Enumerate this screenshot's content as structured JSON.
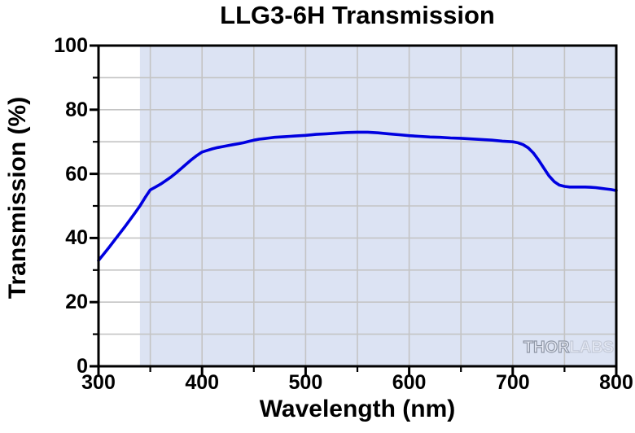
{
  "watermark": {
    "thor": "THOR",
    "labs": "LABS"
  },
  "colors": {
    "background": "#ffffff",
    "frame": "#000000",
    "gridline": "#c4c4c4",
    "shaded_region": "#dce3f3",
    "curve": "#0000e0",
    "text": "#000000",
    "watermark_thor_outline": "#8f97a6",
    "watermark_labs_outline": "#c4cad8"
  },
  "chart_data": {
    "type": "line",
    "title": "LLG3-6H Transmission",
    "xlabel": "Wavelength (nm)",
    "ylabel": "Transmission (%)",
    "xlim": [
      300,
      800
    ],
    "ylim": [
      0,
      100
    ],
    "x_major_ticks": [
      300,
      400,
      500,
      600,
      700,
      800
    ],
    "x_minor_ticks": [
      350,
      450,
      550,
      650,
      750
    ],
    "y_major_ticks": [
      0,
      20,
      40,
      60,
      80,
      100
    ],
    "y_minor_ticks": [
      10,
      30,
      50,
      70,
      90
    ],
    "x_gridlines": [
      350,
      400,
      450,
      500,
      550,
      600,
      650,
      700,
      750
    ],
    "y_gridlines": [
      10,
      20,
      30,
      40,
      50,
      60,
      70,
      80,
      90
    ],
    "grid": true,
    "legend": "none",
    "shaded_region": {
      "x_start": 340,
      "x_end": 800
    },
    "series": [
      {
        "name": "LLG3-6H",
        "points": [
          [
            300,
            33.0
          ],
          [
            305,
            35.0
          ],
          [
            310,
            37.0
          ],
          [
            315,
            39.1
          ],
          [
            320,
            41.2
          ],
          [
            325,
            43.3
          ],
          [
            330,
            45.5
          ],
          [
            335,
            47.7
          ],
          [
            340,
            50.0
          ],
          [
            345,
            52.6
          ],
          [
            350,
            55.0
          ],
          [
            355,
            55.9
          ],
          [
            360,
            56.8
          ],
          [
            365,
            57.9
          ],
          [
            370,
            59.0
          ],
          [
            375,
            60.3
          ],
          [
            380,
            61.7
          ],
          [
            385,
            63.1
          ],
          [
            390,
            64.5
          ],
          [
            395,
            65.7
          ],
          [
            400,
            66.8
          ],
          [
            405,
            67.3
          ],
          [
            410,
            67.8
          ],
          [
            415,
            68.2
          ],
          [
            420,
            68.5
          ],
          [
            425,
            68.8
          ],
          [
            430,
            69.1
          ],
          [
            435,
            69.4
          ],
          [
            440,
            69.7
          ],
          [
            445,
            70.1
          ],
          [
            450,
            70.5
          ],
          [
            455,
            70.8
          ],
          [
            460,
            71.0
          ],
          [
            465,
            71.2
          ],
          [
            470,
            71.4
          ],
          [
            475,
            71.5
          ],
          [
            480,
            71.6
          ],
          [
            485,
            71.7
          ],
          [
            490,
            71.8
          ],
          [
            495,
            71.9
          ],
          [
            500,
            72.0
          ],
          [
            510,
            72.3
          ],
          [
            520,
            72.5
          ],
          [
            530,
            72.7
          ],
          [
            540,
            72.9
          ],
          [
            550,
            73.0
          ],
          [
            560,
            73.0
          ],
          [
            570,
            72.8
          ],
          [
            580,
            72.5
          ],
          [
            590,
            72.2
          ],
          [
            600,
            71.9
          ],
          [
            610,
            71.7
          ],
          [
            620,
            71.5
          ],
          [
            630,
            71.4
          ],
          [
            640,
            71.2
          ],
          [
            650,
            71.1
          ],
          [
            660,
            70.9
          ],
          [
            670,
            70.7
          ],
          [
            680,
            70.5
          ],
          [
            690,
            70.2
          ],
          [
            700,
            70.0
          ],
          [
            705,
            69.7
          ],
          [
            710,
            69.1
          ],
          [
            715,
            68.1
          ],
          [
            720,
            66.5
          ],
          [
            725,
            64.3
          ],
          [
            730,
            61.8
          ],
          [
            735,
            59.4
          ],
          [
            740,
            57.6
          ],
          [
            745,
            56.5
          ],
          [
            750,
            56.1
          ],
          [
            755,
            55.9
          ],
          [
            760,
            55.9
          ],
          [
            765,
            55.9
          ],
          [
            770,
            55.9
          ],
          [
            775,
            55.8
          ],
          [
            780,
            55.7
          ],
          [
            785,
            55.5
          ],
          [
            790,
            55.3
          ],
          [
            795,
            55.1
          ],
          [
            800,
            54.8
          ]
        ]
      }
    ]
  }
}
